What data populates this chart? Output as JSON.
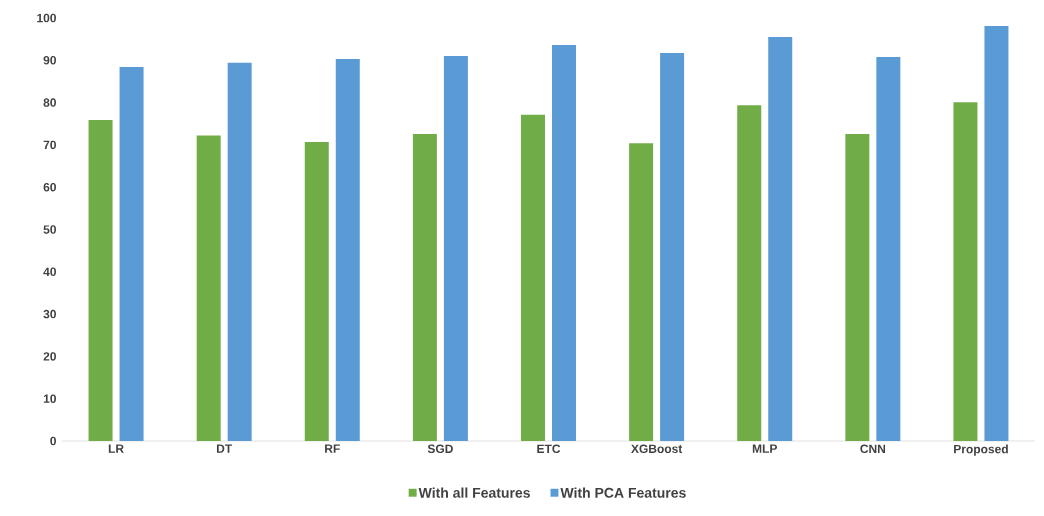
{
  "chart_data": {
    "type": "bar",
    "categories": [
      "LR",
      "DT",
      "RF",
      "SGD",
      "ETC",
      "XGBoost",
      "MLP",
      "CNN",
      "Proposed"
    ],
    "series": [
      {
        "name": "With all Features",
        "color": "#70ad47",
        "values": [
          75.9,
          72.2,
          70.7,
          72.6,
          77.1,
          70.4,
          79.4,
          72.6,
          80.1
        ]
      },
      {
        "name": "With PCA Features",
        "color": "#5b9bd5",
        "values": [
          88.4,
          89.4,
          90.3,
          91.0,
          93.6,
          91.7,
          95.5,
          90.8,
          98.1
        ]
      }
    ],
    "ylim": [
      0,
      100
    ],
    "yticks": [
      0,
      10,
      20,
      30,
      40,
      50,
      60,
      70,
      80,
      90,
      100
    ],
    "grid": false,
    "legend": "bottom"
  }
}
